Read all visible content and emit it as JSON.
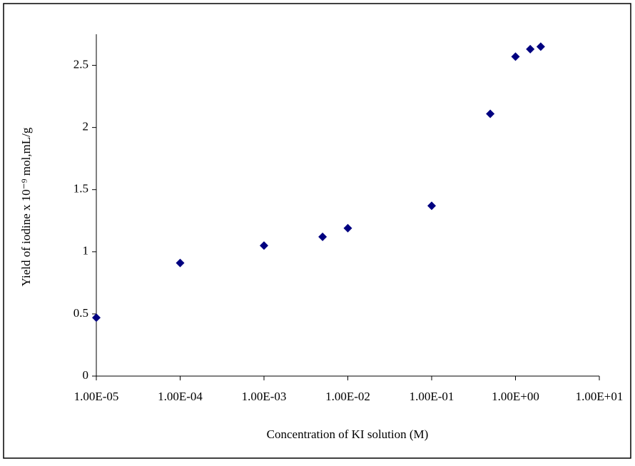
{
  "chart_data": {
    "type": "scatter",
    "xlabel": "Concentration of KI solution (M)",
    "ylabel": "Yield of iodine x 10⁻⁹ mol,mL/g",
    "x": [
      1e-05,
      0.0001,
      0.001,
      0.005,
      0.01,
      0.1,
      0.5,
      1,
      1.5,
      2
    ],
    "values": [
      0.47,
      0.91,
      1.05,
      1.12,
      1.19,
      1.37,
      2.11,
      2.57,
      2.63,
      2.65
    ],
    "color": "#000080",
    "xlog": true,
    "xlim": [
      1e-05,
      10
    ],
    "xticks": [
      {
        "value": 1e-05,
        "label": "1.00E-05"
      },
      {
        "value": 0.0001,
        "label": "1.00E-04"
      },
      {
        "value": 0.001,
        "label": "1.00E-03"
      },
      {
        "value": 0.01,
        "label": "1.00E-02"
      },
      {
        "value": 0.1,
        "label": "1.00E-01"
      },
      {
        "value": 1,
        "label": "1.00E+00"
      },
      {
        "value": 10,
        "label": "1.00E+01"
      }
    ],
    "ylim": [
      0,
      2.75
    ],
    "yticks": [
      0,
      0.5,
      1,
      1.5,
      2,
      2.5
    ],
    "grid": false
  }
}
